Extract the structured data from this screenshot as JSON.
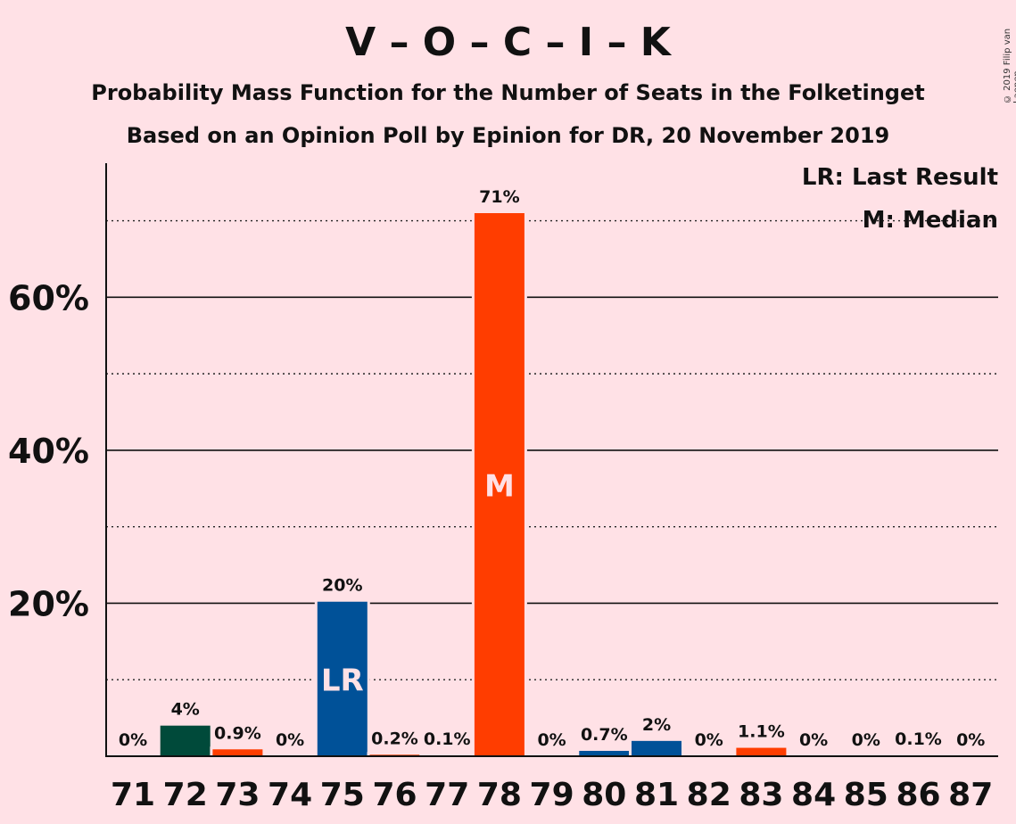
{
  "header": {
    "title": "V – O – C – I – K",
    "subtitle1": "Probability Mass Function for the Number of Seats in the Folketinget",
    "subtitle2": "Based on an Opinion Poll by Epinion for DR, 20 November 2019",
    "copyright": "© 2019 Filip van Laenen"
  },
  "legend": {
    "last_result": "LR: Last Result",
    "median": "M: Median"
  },
  "colors": {
    "background": "#FFE1E6",
    "bar_default": "#FF3D00",
    "bar_dark_green": "#004A3A",
    "bar_blue": "#005198"
  },
  "chart_data": {
    "type": "bar",
    "categories": [
      "71",
      "72",
      "73",
      "74",
      "75",
      "76",
      "77",
      "78",
      "79",
      "80",
      "81",
      "82",
      "83",
      "84",
      "85",
      "86",
      "87"
    ],
    "values": [
      0,
      4,
      0.9,
      0,
      20.2,
      0.2,
      0.1,
      71,
      0,
      0.7,
      2,
      0,
      1.1,
      0,
      0,
      0.1,
      0
    ],
    "labels": [
      "0%",
      "4%",
      "0.9%",
      "0%",
      "20%",
      "0.2%",
      "0.1%",
      "71%",
      "0%",
      "0.7%",
      "2%",
      "0%",
      "1.1%",
      "0%",
      "0%",
      "0.1%",
      "0%"
    ],
    "bar_colors": [
      "#FF3D00",
      "#004A3A",
      "#FF3D00",
      "#FF3D00",
      "#005198",
      "#FF3D00",
      "#FF3D00",
      "#FF3D00",
      "#FF3D00",
      "#005198",
      "#005198",
      "#FF3D00",
      "#FF3D00",
      "#FF3D00",
      "#FF3D00",
      "#FF3D00",
      "#FF3D00"
    ],
    "markers": {
      "75": "LR",
      "78": "M"
    },
    "ylim": [
      0,
      77
    ],
    "y_major_ticks": [
      20,
      40,
      60
    ],
    "y_major_tick_labels": [
      "20%",
      "40%",
      "60%"
    ],
    "y_minor_gridlines": [
      10,
      30,
      50,
      70
    ],
    "xlabel": "",
    "ylabel": "",
    "grid": true,
    "legend_position": "top-right"
  }
}
